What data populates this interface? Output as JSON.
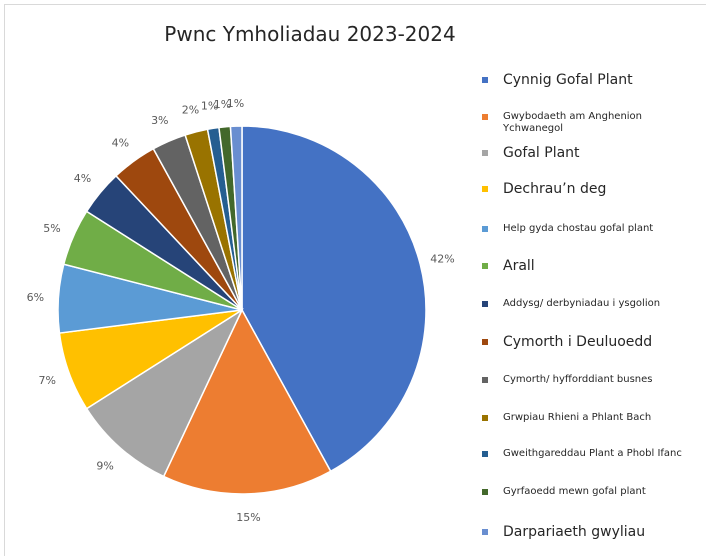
{
  "chart_data": {
    "type": "pie",
    "title": "Pwnc Ymholiadau 2023-2024",
    "slices": [
      {
        "name": "Cynnig Gofal Plant",
        "value": 42,
        "label": "42%",
        "color": "#4472C4"
      },
      {
        "name": "Gwybodaeth am Anghenion Ychwanegol",
        "value": 15,
        "label": "15%",
        "color": "#ED7D31"
      },
      {
        "name": "Gofal Plant",
        "value": 9,
        "label": "9%",
        "color": "#A5A5A5"
      },
      {
        "name": "Dechrau’n deg",
        "value": 7,
        "label": "7%",
        "color": "#FFC000"
      },
      {
        "name": "Help gyda chostau gofal plant",
        "value": 6,
        "label": "6%",
        "color": "#5B9BD5"
      },
      {
        "name": "Arall",
        "value": 5,
        "label": "5%",
        "color": "#70AD47"
      },
      {
        "name": "Addysg/ derbyniadau i ysgolion",
        "value": 4,
        "label": "4%",
        "color": "#264478"
      },
      {
        "name": "Cymorth i Deuluoedd",
        "value": 4,
        "label": "4%",
        "color": "#9E480E"
      },
      {
        "name": "Cymorth/ hyfforddiant busnes",
        "value": 3,
        "label": "3%",
        "color": "#636363"
      },
      {
        "name": "Grwpiau Rhieni a Phlant Bach",
        "value": 2,
        "label": "2%",
        "color": "#997300"
      },
      {
        "name": "Gweithgareddau Plant a Phobl Ifanc",
        "value": 1,
        "label": "1%",
        "color": "#255E91"
      },
      {
        "name": "Gyrfaoedd mewn gofal plant",
        "value": 1,
        "label": "1%",
        "color": "#43682B"
      },
      {
        "name": "Darpariaeth gwyliau",
        "value": 1,
        "label": "1%",
        "color": "#698ED0"
      }
    ],
    "legend_position": "right"
  }
}
